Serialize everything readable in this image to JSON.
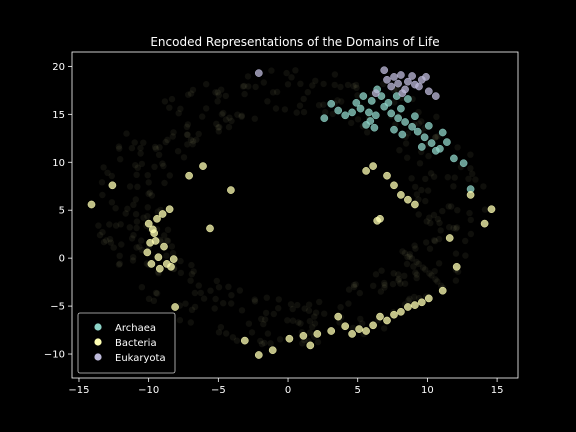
{
  "chart_data": {
    "type": "scatter",
    "title": "Encoded Representations of the Domains of Life",
    "xlabel": "",
    "ylabel": "",
    "xlim": [
      -15.5,
      16.5
    ],
    "ylim": [
      -12.5,
      21.5
    ],
    "xticks": [
      -15,
      -10,
      -5,
      0,
      5,
      10,
      15
    ],
    "yticks": [
      -10,
      -5,
      0,
      5,
      10,
      15,
      20
    ],
    "grid": false,
    "legend_position": "lower-left",
    "background": "#000000",
    "series": [
      {
        "name": "Archaea",
        "color": "#8dd3c7",
        "points": [
          [
            5.2,
            15.6
          ],
          [
            5.8,
            15.2
          ],
          [
            6.3,
            14.9
          ],
          [
            6.9,
            15.8
          ],
          [
            7.4,
            15.1
          ],
          [
            7.9,
            14.6
          ],
          [
            8.4,
            14.2
          ],
          [
            8.9,
            13.7
          ],
          [
            9.3,
            13.2
          ],
          [
            9.8,
            12.6
          ],
          [
            10.3,
            12.0
          ],
          [
            10.9,
            11.4
          ],
          [
            11.4,
            12.1
          ],
          [
            6.0,
            16.4
          ],
          [
            6.7,
            16.9
          ],
          [
            7.2,
            16.2
          ],
          [
            4.6,
            15.2
          ],
          [
            4.1,
            14.9
          ],
          [
            3.6,
            15.4
          ],
          [
            3.1,
            16.1
          ],
          [
            2.6,
            14.6
          ],
          [
            5.6,
            13.9
          ],
          [
            6.2,
            13.6
          ],
          [
            7.6,
            13.4
          ],
          [
            8.2,
            12.9
          ],
          [
            9.6,
            11.6
          ],
          [
            10.6,
            11.2
          ],
          [
            11.9,
            10.4
          ],
          [
            12.6,
            9.9
          ],
          [
            13.1,
            7.2
          ],
          [
            8.6,
            16.6
          ],
          [
            7.8,
            16.9
          ],
          [
            6.4,
            17.6
          ],
          [
            5.9,
            14.3
          ],
          [
            9.1,
            14.8
          ],
          [
            10.1,
            13.8
          ],
          [
            11.1,
            13.1
          ],
          [
            4.9,
            16.2
          ],
          [
            5.4,
            16.9
          ],
          [
            8.1,
            15.6
          ]
        ]
      },
      {
        "name": "Bacteria",
        "color": "#ffffb3",
        "points": [
          [
            -9.6,
            2.6
          ],
          [
            -9.9,
            1.6
          ],
          [
            -10.1,
            0.6
          ],
          [
            -9.8,
            -0.6
          ],
          [
            -9.2,
            -1.1
          ],
          [
            -8.7,
            -0.6
          ],
          [
            -8.2,
            -0.1
          ],
          [
            -9.4,
            4.1
          ],
          [
            -9.0,
            4.6
          ],
          [
            -8.5,
            5.1
          ],
          [
            -10.0,
            3.6
          ],
          [
            -8.9,
            1.2
          ],
          [
            -9.3,
            0.1
          ],
          [
            -8.4,
            -0.9
          ],
          [
            -9.7,
            3.0
          ],
          [
            -9.5,
            1.8
          ],
          [
            3.1,
            -7.6
          ],
          [
            4.1,
            -7.1
          ],
          [
            5.1,
            -7.4
          ],
          [
            6.1,
            -7.0
          ],
          [
            7.1,
            -6.5
          ],
          [
            8.1,
            -5.6
          ],
          [
            9.1,
            -4.9
          ],
          [
            10.1,
            -4.2
          ],
          [
            11.1,
            -3.4
          ],
          [
            2.1,
            -7.9
          ],
          [
            1.1,
            -8.1
          ],
          [
            0.1,
            -8.4
          ],
          [
            6.6,
            -6.1
          ],
          [
            7.6,
            -5.9
          ],
          [
            8.6,
            -5.1
          ],
          [
            9.6,
            -4.6
          ],
          [
            5.6,
            -7.6
          ],
          [
            4.6,
            -7.9
          ],
          [
            7.1,
            8.6
          ],
          [
            7.6,
            7.6
          ],
          [
            8.1,
            6.6
          ],
          [
            8.6,
            6.1
          ],
          [
            9.1,
            5.6
          ],
          [
            6.6,
            4.1
          ],
          [
            6.4,
            3.9
          ],
          [
            5.6,
            9.1
          ],
          [
            6.1,
            9.6
          ],
          [
            -6.1,
            9.6
          ],
          [
            -7.1,
            8.6
          ],
          [
            -5.6,
            3.1
          ],
          [
            -8.1,
            -5.1
          ],
          [
            -2.1,
            -10.1
          ],
          [
            -3.1,
            -8.6
          ],
          [
            13.1,
            6.6
          ],
          [
            14.1,
            3.6
          ],
          [
            14.6,
            5.1
          ],
          [
            11.6,
            2.1
          ],
          [
            12.1,
            -0.9
          ],
          [
            -14.1,
            5.6
          ],
          [
            -12.6,
            7.6
          ],
          [
            -4.1,
            7.1
          ],
          [
            1.6,
            -9.1
          ],
          [
            -1.1,
            -9.6
          ],
          [
            3.6,
            -6.1
          ]
        ]
      },
      {
        "name": "Eukaryota",
        "color": "#bebada",
        "points": [
          [
            7.1,
            18.6
          ],
          [
            7.6,
            18.9
          ],
          [
            8.1,
            19.1
          ],
          [
            8.6,
            18.4
          ],
          [
            9.1,
            18.1
          ],
          [
            9.6,
            18.6
          ],
          [
            7.4,
            17.9
          ],
          [
            8.4,
            17.6
          ],
          [
            9.4,
            17.9
          ],
          [
            10.1,
            17.4
          ],
          [
            7.9,
            18.2
          ],
          [
            8.9,
            19.0
          ],
          [
            6.9,
            19.6
          ],
          [
            10.6,
            16.9
          ],
          [
            -2.1,
            19.3
          ],
          [
            6.3,
            17.2
          ],
          [
            9.9,
            18.9
          ],
          [
            8.2,
            17.2
          ]
        ]
      }
    ]
  }
}
